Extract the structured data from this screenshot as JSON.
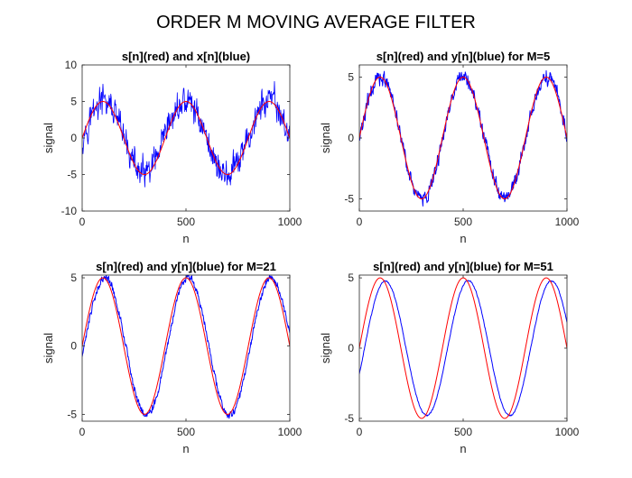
{
  "figure": {
    "title": "ORDER M MOVING AVERAGE FILTER",
    "colors": {
      "clean": "#ff0000",
      "filtered": "#0000ff",
      "axis": "#262626",
      "background": "#ffffff"
    }
  },
  "chart_data": [
    {
      "type": "line",
      "title": "s[n](red) and x[n](blue)",
      "xlabel": "n",
      "ylabel": "signal",
      "xlim": [
        0,
        1000
      ],
      "ylim": [
        -10,
        10
      ],
      "xticks": [
        0,
        500,
        1000
      ],
      "yticks": [
        -10,
        -5,
        0,
        5,
        10
      ],
      "grid": false,
      "series": [
        {
          "color": "#ff0000",
          "formula": "5*sin(2*pi*n/400)",
          "noise_amplitude": 0,
          "delay": 0
        },
        {
          "color": "#0000ff",
          "formula": "5*sin(2*pi*n/400) + noise",
          "noise_amplitude": 2,
          "delay": 0
        }
      ]
    },
    {
      "type": "line",
      "title": "s[n](red) and y[n](blue) for M=5",
      "xlabel": "n",
      "ylabel": "signal",
      "xlim": [
        0,
        1000
      ],
      "ylim": [
        -6,
        6
      ],
      "xticks": [
        0,
        500,
        1000
      ],
      "yticks": [
        -5,
        0,
        5
      ],
      "grid": false,
      "series": [
        {
          "color": "#ff0000",
          "formula": "5*sin(2*pi*n/400)",
          "noise_amplitude": 0,
          "delay": 0
        },
        {
          "color": "#0000ff",
          "formula": "moving average of x[n], M=5",
          "noise_amplitude": 0.6,
          "delay": 2
        }
      ]
    },
    {
      "type": "line",
      "title": "s[n](red) and y[n](blue) for M=21",
      "xlabel": "n",
      "ylabel": "signal",
      "xlim": [
        0,
        1000
      ],
      "ylim": [
        -5.5,
        5.2
      ],
      "xticks": [
        0,
        500,
        1000
      ],
      "yticks": [
        -5,
        0,
        5
      ],
      "grid": false,
      "series": [
        {
          "color": "#ff0000",
          "formula": "5*sin(2*pi*n/400)",
          "noise_amplitude": 0,
          "delay": 0
        },
        {
          "color": "#0000ff",
          "formula": "moving average of x[n], M=21",
          "noise_amplitude": 0.25,
          "delay": 10
        }
      ]
    },
    {
      "type": "line",
      "title": "s[n](red) and y[n](blue) for M=51",
      "xlabel": "n",
      "ylabel": "signal",
      "xlim": [
        0,
        1000
      ],
      "ylim": [
        -5.2,
        5.2
      ],
      "xticks": [
        0,
        500,
        1000
      ],
      "yticks": [
        -5,
        0,
        5
      ],
      "grid": false,
      "series": [
        {
          "color": "#ff0000",
          "formula": "5*sin(2*pi*n/400)",
          "noise_amplitude": 0,
          "delay": 0
        },
        {
          "color": "#0000ff",
          "formula": "moving average of x[n], M=51",
          "noise_amplitude": 0.05,
          "delay": 25,
          "gain": 0.96
        }
      ]
    }
  ]
}
